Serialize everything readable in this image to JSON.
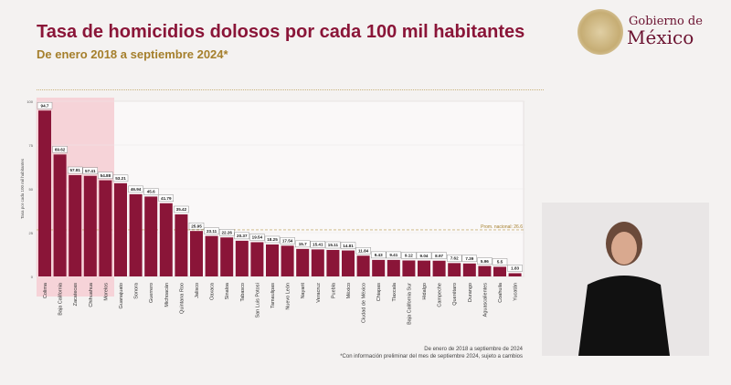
{
  "header": {
    "title": "Tasa de homicidios dolosos por cada 100 mil habitantes",
    "subtitle": "De enero 2018 a septiembre 2024*"
  },
  "logo": {
    "line1": "Gobierno de",
    "line2": "México"
  },
  "chart_data": {
    "type": "bar",
    "title": "Tasa de homicidios dolosos por cada 100 mil habitantes",
    "ylabel": "Tasa por cada 100 mil habitantes",
    "ylim": [
      0,
      100
    ],
    "yticks": [
      0,
      25,
      50,
      75,
      100
    ],
    "bar_color": "#8a1538",
    "highlight_color": "#f6d3d8",
    "highlighted_count": 5,
    "reference_line": {
      "label": "Prom. nacional: 26.6",
      "value": 26.6,
      "color": "#c9b27a"
    },
    "categories": [
      "Colima",
      "Baja California",
      "Zacatecas",
      "Chihuahua",
      "Morelos",
      "Guanajuato",
      "Sonora",
      "Guerrero",
      "Michoacán",
      "Quintana Roo",
      "Jalisco",
      "Oaxaca",
      "Sinaloa",
      "Tabasco",
      "San Luis Potosí",
      "Tamaulipas",
      "Nuevo León",
      "Nayarit",
      "Veracruz",
      "Puebla",
      "México",
      "Ciudad de México",
      "Chiapas",
      "Tlaxcala",
      "Baja California Sur",
      "Hidalgo",
      "Campeche",
      "Querétaro",
      "Durango",
      "Aguascalientes",
      "Coahuila",
      "Yucatán"
    ],
    "values": [
      94.7,
      69.62,
      57.81,
      57.41,
      54.88,
      53.21,
      46.94,
      45.6,
      41.79,
      35.42,
      25.95,
      23.11,
      22.26,
      20.37,
      19.54,
      18.25,
      17.54,
      15.7,
      15.41,
      15.11,
      14.81,
      11.84,
      9.43,
      9.41,
      9.12,
      9.04,
      8.97,
      7.62,
      7.39,
      5.96,
      5.5,
      1.83
    ]
  },
  "footnotes": [
    "De enero de 2018 a septiembre de 2024",
    "*Con información preliminar del mes de septiembre 2024, sujeto a cambios"
  ]
}
